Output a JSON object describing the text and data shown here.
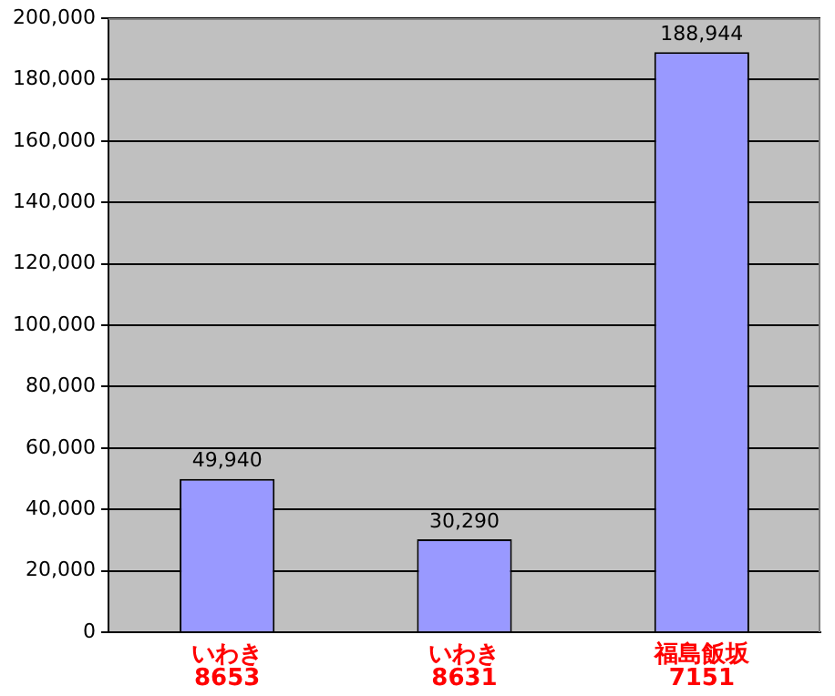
{
  "chart_data": {
    "type": "bar",
    "categories": [
      "いわき\n8653",
      "いわき\n8631",
      "福島飯坂\n7151"
    ],
    "values": [
      49940,
      30290,
      188944
    ],
    "value_labels": [
      "49,940",
      "30,290",
      "188,944"
    ],
    "color": "#9999ff",
    "ylim": [
      0,
      200000
    ],
    "yticks": [
      {
        "value": 0,
        "label": "0"
      },
      {
        "value": 20000,
        "label": "20,000"
      },
      {
        "value": 40000,
        "label": "40,000"
      },
      {
        "value": 60000,
        "label": "60,000"
      },
      {
        "value": 80000,
        "label": "80,000"
      },
      {
        "value": 100000,
        "label": "100,000"
      },
      {
        "value": 120000,
        "label": "120,000"
      },
      {
        "value": 140000,
        "label": "140,000"
      },
      {
        "value": 160000,
        "label": "160,000"
      },
      {
        "value": 180000,
        "label": "180,000"
      },
      {
        "value": 200000,
        "label": "200,000"
      }
    ],
    "grid": "y",
    "legend": false
  }
}
